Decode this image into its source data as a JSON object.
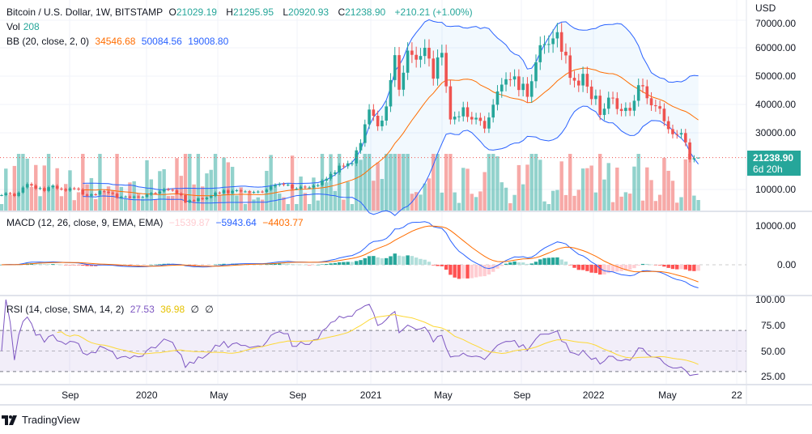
{
  "header": {
    "symbol": "Bitcoin / U.S. Dollar, 1W, BITSTAMP",
    "open_label": "O",
    "open": "21029.19",
    "high_label": "H",
    "high": "21295.95",
    "low_label": "L",
    "low": "20920.93",
    "close_label": "C",
    "close": "21238.90",
    "change": "+210.21 (+1.00%)"
  },
  "vol": {
    "label": "Vol",
    "value": "208"
  },
  "bb": {
    "label": "BB (20, close, 2, 0)",
    "basis": "34546.68",
    "upper": "50084.56",
    "lower": "19008.80"
  },
  "macd": {
    "label": "MACD (12, 26, close, 9, EMA, EMA)",
    "hist": "−1539.87",
    "macd": "−5943.64",
    "signal": "−4403.77"
  },
  "rsi": {
    "label": "RSI (14, close, SMA, 14, 2)",
    "rsi": "27.53",
    "sma": "36.98",
    "v3": "∅",
    "v4": "∅"
  },
  "price_axis": {
    "currency": "USD",
    "labels": [
      "70000.00",
      "60000.00",
      "50000.00",
      "40000.00",
      "30000.00",
      "10000.00"
    ]
  },
  "price_tag": {
    "price": "21238.90",
    "countdown": "6d 20h"
  },
  "macd_axis": [
    "10000.00",
    "0.00"
  ],
  "rsi_axis": [
    "100.00",
    "75.00",
    "50.00",
    "25.00"
  ],
  "time_axis": [
    "Sep",
    "2020",
    "May",
    "Sep",
    "2021",
    "May",
    "Sep",
    "2022",
    "May",
    "22"
  ],
  "branding": "TradingView",
  "colors": {
    "up": "#26a69a",
    "down": "#ef5350",
    "bb_band": "#2962ff",
    "bb_basis": "#ff6d00",
    "macd": "#2962ff",
    "signal": "#ff6d00",
    "rsi": "#7e57c2",
    "rsi_sma": "#fdd835"
  },
  "chart_data": {
    "type": "candlestick",
    "interval": "1W",
    "ylim": [
      0,
      70000
    ],
    "last": {
      "open": 21029.19,
      "high": 21295.95,
      "low": 20920.93,
      "close": 21238.9,
      "volume": 208
    },
    "close": [
      8000,
      8700,
      8500,
      7700,
      8900,
      10700,
      11900,
      11400,
      10300,
      10500,
      9500,
      10800,
      11300,
      10300,
      10100,
      9600,
      10400,
      10300,
      10000,
      8200,
      7800,
      8300,
      8200,
      9500,
      9200,
      8800,
      8500,
      7100,
      7400,
      7500,
      7100,
      7500,
      7300,
      7400,
      8200,
      8700,
      8600,
      9300,
      10100,
      9900,
      9700,
      8600,
      8000,
      5400,
      6200,
      5900,
      6900,
      6600,
      7100,
      7700,
      8900,
      8700,
      9700,
      8700,
      9500,
      9700,
      9300,
      9300,
      9000,
      9100,
      9250,
      9150,
      9900,
      11100,
      11600,
      11900,
      11700,
      11700,
      10300,
      10300,
      11000,
      10700,
      10700,
      11400,
      11500,
      13100,
      13800,
      15500,
      16000,
      18400,
      18200,
      19200,
      19200,
      23800,
      26400,
      33000,
      38200,
      36000,
      32300,
      34300,
      39300,
      48600,
      57400,
      45200,
      51200,
      59000,
      57500,
      55800,
      57100,
      60000,
      56200,
      49100,
      56600,
      58200,
      46400,
      34700,
      35700,
      35800,
      39000,
      35600,
      34700,
      35300,
      34200,
      31500,
      35400,
      39900,
      44600,
      47000,
      48900,
      48800,
      49900,
      45100,
      47300,
      42700,
      48200,
      54900,
      60900,
      61300,
      61300,
      63300,
      65500,
      58600,
      57300,
      49400,
      48400,
      46700,
      50800,
      46300,
      41900,
      43100,
      36300,
      38500,
      42400,
      42200,
      38400,
      37700,
      38800,
      37800,
      41300,
      46800,
      46400,
      42200,
      39700,
      39400,
      38500,
      34100,
      31300,
      29500,
      29400,
      29900,
      26600,
      20600,
      21029.19,
      21238.9
    ],
    "indicators": [
      "Bollinger Bands (20, 2)",
      "MACD (12, 26, 9)",
      "RSI (14) with SMA (14)"
    ]
  }
}
